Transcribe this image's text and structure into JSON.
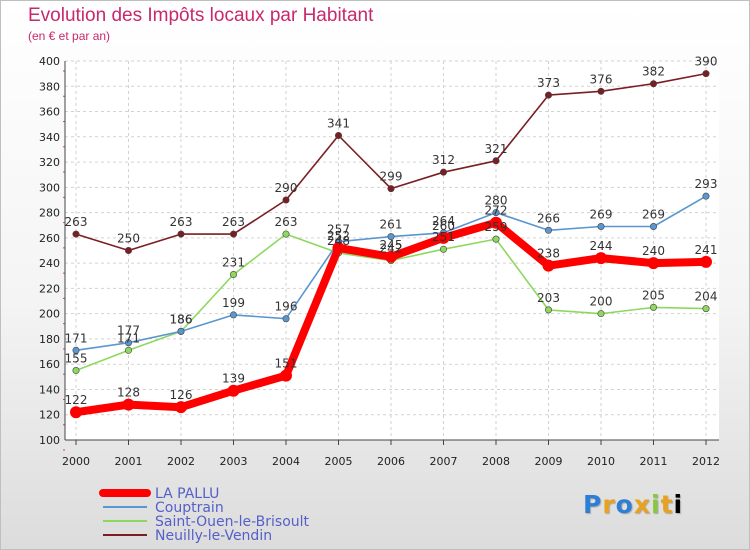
{
  "header": {
    "title": "Evolution des Impôts locaux par Habitant",
    "subtitle": "(en € et par an)"
  },
  "logo": {
    "text": "Proxiti"
  },
  "chart_data": {
    "type": "line",
    "title": "Evolution des Impôts locaux par Habitant",
    "subtitle": "(en € et par an)",
    "xlabel": "",
    "ylabel": "",
    "x": [
      "2000",
      "2001",
      "2002",
      "2003",
      "2004",
      "2005",
      "2006",
      "2007",
      "2008",
      "2009",
      "2010",
      "2011",
      "2012"
    ],
    "ylim": [
      100,
      400
    ],
    "yticks": [
      100,
      120,
      140,
      160,
      180,
      200,
      220,
      240,
      260,
      280,
      300,
      320,
      340,
      360,
      380,
      400
    ],
    "grid": true,
    "legend_position": "bottom-left",
    "series": [
      {
        "name": "Neuilly-le-Vendin",
        "color": "#7a1e23",
        "values": [
          263,
          250,
          263,
          263,
          290,
          341,
          299,
          312,
          321,
          373,
          376,
          382,
          390
        ]
      },
      {
        "name": "Saint-Ouen-le-Brisoult",
        "color": "#8fd860",
        "values": [
          155,
          171,
          186,
          231,
          263,
          248,
          242,
          251,
          259,
          203,
          200,
          205,
          204
        ]
      },
      {
        "name": "Couptrain",
        "color": "#5a96d0",
        "values": [
          171,
          177,
          186,
          199,
          196,
          257,
          261,
          264,
          280,
          266,
          269,
          269,
          293
        ]
      },
      {
        "name": "LA PALLU",
        "color": "#ff0000",
        "values": [
          122,
          128,
          126,
          139,
          151,
          252,
          245,
          260,
          272,
          238,
          244,
          240,
          241
        ]
      }
    ],
    "legend_order": [
      "LA PALLU",
      "Couptrain",
      "Saint-Ouen-le-Brisoult",
      "Neuilly-le-Vendin"
    ]
  }
}
